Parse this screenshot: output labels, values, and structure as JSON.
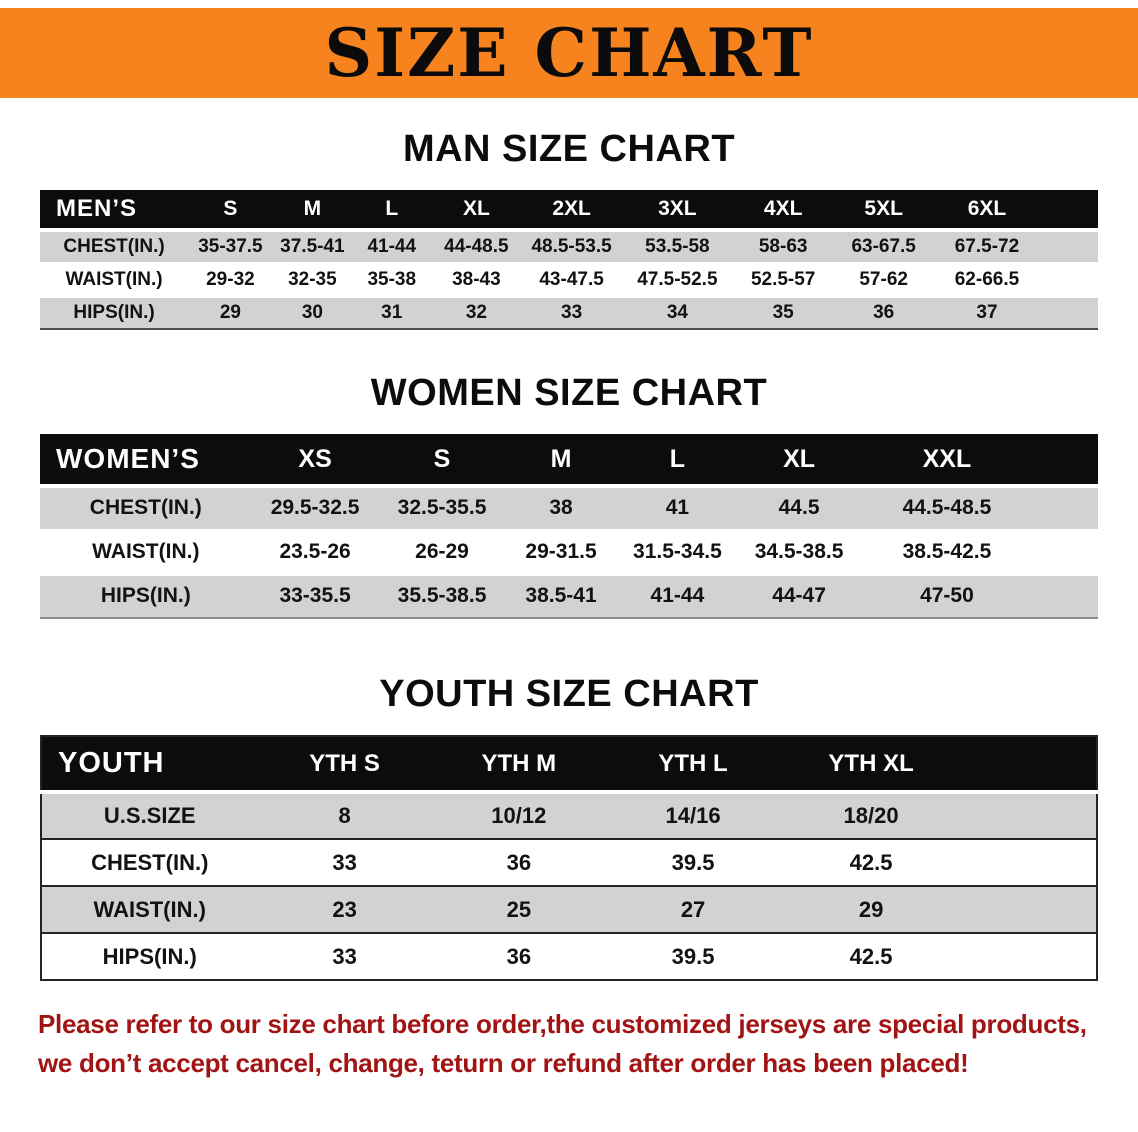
{
  "banner": {
    "title": "SIZE CHART",
    "bg_color": "#F6831D"
  },
  "men": {
    "heading": "MAN SIZE CHART",
    "table": {
      "header": [
        "MEN’S",
        "S",
        "M",
        "L",
        "XL",
        "2XL",
        "3XL",
        "4XL",
        "5XL",
        "6XL"
      ],
      "rows": [
        [
          "CHEST(IN.)",
          "35-37.5",
          "37.5-41",
          "41-44",
          "44-48.5",
          "48.5-53.5",
          "53.5-58",
          "58-63",
          "63-67.5",
          "67.5-72"
        ],
        [
          "WAIST(IN.)",
          "29-32",
          "32-35",
          "35-38",
          "38-43",
          "43-47.5",
          "47.5-52.5",
          "52.5-57",
          "57-62",
          "62-66.5"
        ],
        [
          "HIPS(IN.)",
          "29",
          "30",
          "31",
          "32",
          "33",
          "34",
          "35",
          "36",
          "37"
        ]
      ]
    }
  },
  "women": {
    "heading": "WOMEN SIZE CHART",
    "table": {
      "header": [
        "WOMEN’S",
        "XS",
        "S",
        "M",
        "L",
        "XL",
        "XXL"
      ],
      "rows": [
        [
          "CHEST(IN.)",
          "29.5-32.5",
          "32.5-35.5",
          "38",
          "41",
          "44.5",
          "44.5-48.5"
        ],
        [
          "WAIST(IN.)",
          "23.5-26",
          "26-29",
          "29-31.5",
          "31.5-34.5",
          "34.5-38.5",
          "38.5-42.5"
        ],
        [
          "HIPS(IN.)",
          "33-35.5",
          "35.5-38.5",
          "38.5-41",
          "41-44",
          "44-47",
          "47-50"
        ]
      ]
    }
  },
  "youth": {
    "heading": "YOUTH SIZE CHART",
    "table": {
      "header": [
        "YOUTH",
        "YTH S",
        "YTH M",
        "YTH L",
        "YTH XL"
      ],
      "rows": [
        [
          "U.S.SIZE",
          "8",
          "10/12",
          "14/16",
          "18/20"
        ],
        [
          "CHEST(IN.)",
          "33",
          "36",
          "39.5",
          "42.5"
        ],
        [
          "WAIST(IN.)",
          "23",
          "25",
          "27",
          "29"
        ],
        [
          "HIPS(IN.)",
          "33",
          "36",
          "39.5",
          "42.5"
        ]
      ]
    }
  },
  "disclaimer": {
    "line1": "Please refer to our size chart before order,the customized jerseys are special products,",
    "line2": "we don’t accept cancel, change, teturn or refund after order has been placed!",
    "color": "#A21414"
  }
}
